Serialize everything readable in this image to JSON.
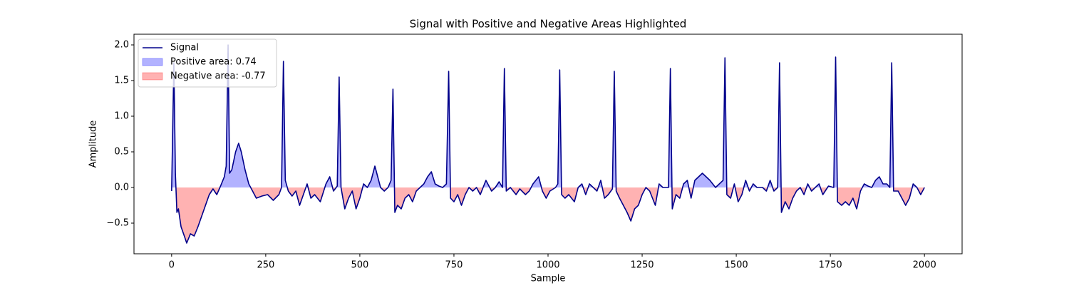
{
  "chart_data": {
    "type": "line",
    "title": "Signal with Positive and Negative Areas Highlighted",
    "x_label": "Sample",
    "y_label": "Amplitude",
    "x": [
      0,
      6,
      10,
      14,
      18,
      25,
      35,
      40,
      50,
      60,
      70,
      80,
      90,
      100,
      110,
      120,
      130,
      140,
      145,
      150,
      154,
      160,
      170,
      178,
      185,
      195,
      205,
      215,
      225,
      240,
      255,
      270,
      285,
      292,
      297,
      302,
      310,
      320,
      330,
      340,
      350,
      360,
      370,
      380,
      395,
      410,
      420,
      430,
      440,
      445,
      450,
      460,
      470,
      480,
      490,
      500,
      510,
      520,
      530,
      540,
      545,
      555,
      565,
      575,
      583,
      588,
      593,
      600,
      610,
      620,
      630,
      640,
      650,
      660,
      670,
      680,
      690,
      700,
      710,
      720,
      730,
      736,
      741,
      750,
      760,
      770,
      780,
      790,
      800,
      810,
      820,
      835,
      850,
      860,
      870,
      879,
      884,
      889,
      900,
      915,
      925,
      940,
      950,
      960,
      975,
      985,
      995,
      1005,
      1020,
      1026,
      1031,
      1036,
      1045,
      1055,
      1070,
      1080,
      1090,
      1100,
      1110,
      1120,
      1130,
      1140,
      1150,
      1160,
      1171,
      1176,
      1181,
      1190,
      1200,
      1210,
      1220,
      1230,
      1240,
      1250,
      1260,
      1270,
      1285,
      1295,
      1305,
      1320,
      1325,
      1330,
      1340,
      1350,
      1360,
      1370,
      1380,
      1390,
      1400,
      1410,
      1420,
      1430,
      1445,
      1455,
      1465,
      1470,
      1475,
      1485,
      1495,
      1505,
      1515,
      1525,
      1535,
      1545,
      1555,
      1570,
      1580,
      1590,
      1600,
      1610,
      1615,
      1620,
      1630,
      1640,
      1650,
      1660,
      1670,
      1680,
      1690,
      1700,
      1710,
      1720,
      1730,
      1745,
      1759,
      1764,
      1769,
      1780,
      1790,
      1800,
      1810,
      1820,
      1830,
      1840,
      1850,
      1860,
      1870,
      1880,
      1890,
      1900,
      1908,
      1913,
      1918,
      1930,
      1940,
      1950,
      1960,
      1970,
      1980,
      1990,
      2000
    ],
    "series": [
      {
        "name": "Signal",
        "color": "#00008b",
        "values": [
          -0.05,
          1.75,
          0.2,
          -0.35,
          -0.3,
          -0.55,
          -0.7,
          -0.78,
          -0.65,
          -0.68,
          -0.55,
          -0.4,
          -0.25,
          -0.1,
          -0.02,
          -0.1,
          0.02,
          0.15,
          0.3,
          2.0,
          0.2,
          0.25,
          0.5,
          0.62,
          0.5,
          0.25,
          0.05,
          -0.05,
          -0.15,
          -0.12,
          -0.1,
          -0.18,
          -0.1,
          0.0,
          1.77,
          0.1,
          -0.05,
          -0.12,
          -0.05,
          -0.25,
          -0.1,
          0.05,
          -0.15,
          -0.1,
          -0.2,
          0.05,
          0.15,
          -0.05,
          0.02,
          1.55,
          0.0,
          -0.3,
          -0.15,
          -0.05,
          -0.3,
          -0.15,
          0.05,
          0.0,
          0.1,
          0.3,
          0.2,
          0.0,
          -0.05,
          0.0,
          0.1,
          1.38,
          -0.35,
          -0.25,
          -0.3,
          -0.15,
          -0.1,
          -0.2,
          -0.05,
          0.0,
          0.05,
          0.15,
          0.22,
          0.05,
          0.02,
          0.0,
          0.05,
          1.63,
          -0.15,
          -0.2,
          -0.1,
          -0.25,
          -0.1,
          0.0,
          -0.05,
          0.0,
          -0.1,
          0.1,
          -0.05,
          0.0,
          0.08,
          0.0,
          1.67,
          -0.05,
          0.0,
          -0.1,
          -0.02,
          -0.1,
          -0.05,
          0.05,
          0.15,
          -0.05,
          -0.15,
          -0.05,
          0.0,
          0.05,
          1.65,
          -0.1,
          -0.15,
          -0.1,
          -0.2,
          0.0,
          0.05,
          -0.1,
          0.05,
          0.0,
          -0.05,
          0.1,
          -0.15,
          -0.1,
          -0.02,
          1.63,
          -0.05,
          -0.15,
          -0.25,
          -0.35,
          -0.47,
          -0.3,
          -0.25,
          -0.1,
          0.0,
          -0.05,
          -0.25,
          0.05,
          0.0,
          0.0,
          1.67,
          -0.3,
          -0.1,
          -0.15,
          0.05,
          0.1,
          -0.15,
          0.1,
          0.15,
          0.2,
          0.15,
          0.1,
          0.0,
          0.05,
          0.1,
          1.82,
          -0.1,
          -0.15,
          0.05,
          -0.2,
          -0.1,
          0.1,
          -0.05,
          0.05,
          0.0,
          0.0,
          -0.05,
          0.1,
          -0.05,
          0.0,
          1.75,
          -0.35,
          -0.2,
          -0.3,
          -0.15,
          -0.05,
          0.0,
          -0.1,
          0.05,
          -0.05,
          0.0,
          0.05,
          -0.1,
          0.02,
          0.0,
          1.83,
          -0.2,
          -0.25,
          -0.2,
          -0.25,
          -0.15,
          -0.3,
          -0.05,
          0.05,
          0.02,
          0.0,
          0.1,
          0.15,
          0.05,
          0.05,
          0.0,
          1.75,
          -0.05,
          -0.05,
          -0.15,
          -0.25,
          -0.15,
          0.05,
          0.0,
          -0.1,
          0.0
        ]
      }
    ],
    "positive_area": {
      "label": "Positive area: 0.74",
      "color": "#0000ff"
    },
    "negative_area": {
      "label": "Negative area: -0.77",
      "color": "#ff0000"
    },
    "xlim": [
      -100,
      2100
    ],
    "ylim": [
      -0.93,
      2.15
    ],
    "xticks": [
      0,
      250,
      500,
      750,
      1000,
      1250,
      1500,
      1750,
      2000
    ],
    "yticks": [
      {
        "value": -0.5,
        "label": "−0.5"
      },
      {
        "value": 0.0,
        "label": "0.0"
      },
      {
        "value": 0.5,
        "label": "0.5"
      },
      {
        "value": 1.0,
        "label": "1.0"
      },
      {
        "value": 1.5,
        "label": "1.5"
      },
      {
        "value": 2.0,
        "label": "2.0"
      }
    ],
    "legend": "upper left"
  }
}
